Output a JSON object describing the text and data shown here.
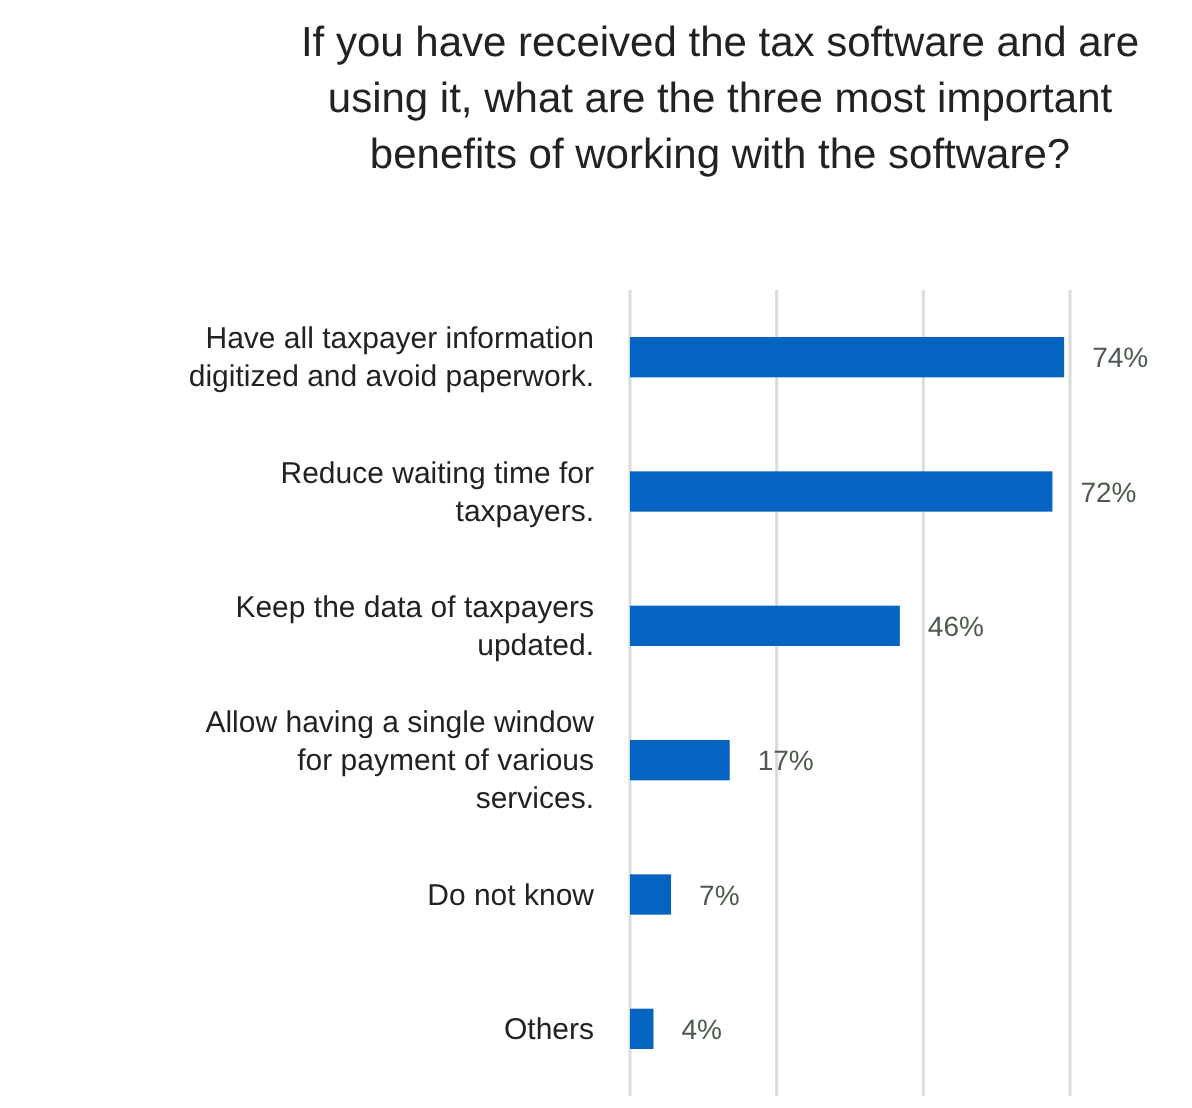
{
  "chart_data": {
    "type": "bar",
    "orientation": "horizontal",
    "title": "If you have received the tax software and are using it, what are the three most important benefits of working with the software?",
    "categories": [
      "Have all taxpayer information digitized and avoid paperwork.",
      "Reduce waiting time for taxpayers.",
      "Keep the data of taxpayers updated.",
      "Allow having a single window for payment of various services.",
      "Do not know",
      "Others"
    ],
    "values": [
      74,
      72,
      46,
      17,
      7,
      4
    ],
    "value_labels": [
      "74%",
      "72%",
      "46%",
      "17%",
      "7%",
      "4%"
    ],
    "color": "#0563c1",
    "xlim": [
      0,
      75
    ],
    "xticks": [
      {
        "value": 0,
        "label": null
      },
      {
        "value": 25,
        "label": null
      },
      {
        "value": 50,
        "label": null
      },
      {
        "value": 75,
        "label": null
      }
    ],
    "grid": "x",
    "tick_labels": "y"
  }
}
